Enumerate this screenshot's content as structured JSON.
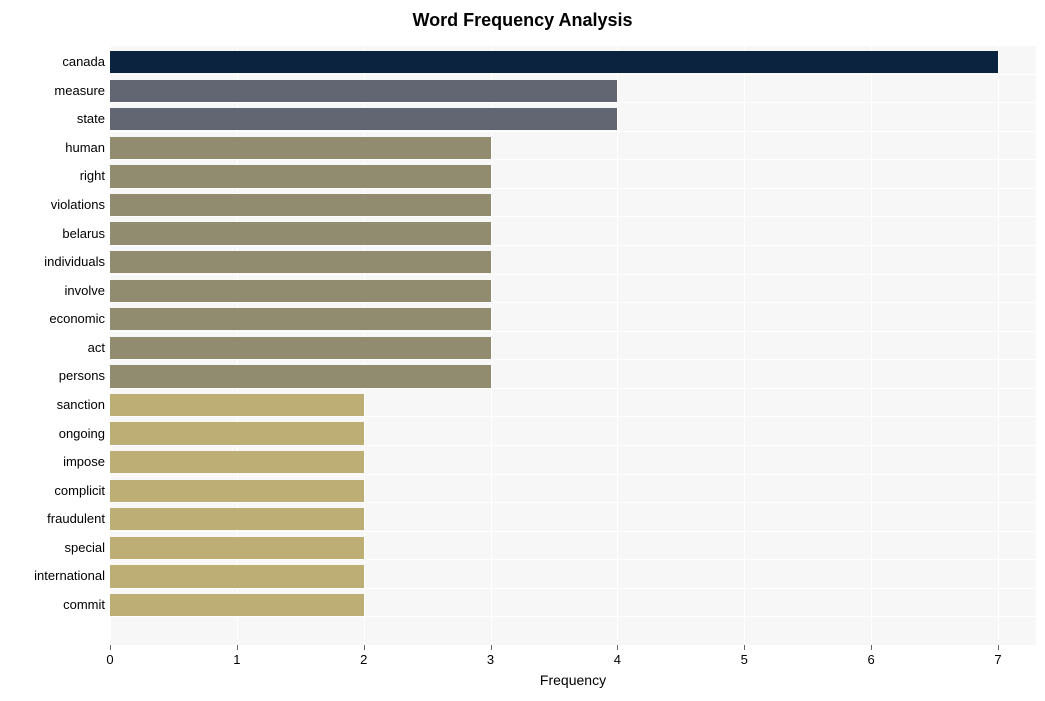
{
  "chart": {
    "type": "bar-horizontal",
    "title": "Word Frequency Analysis",
    "title_fontsize": 18,
    "title_fontweight": "bold",
    "xlabel": "Frequency",
    "xlabel_fontsize": 14,
    "background_color": "#ffffff",
    "plot_background_color": "#f7f7f7",
    "grid_color": "#ffffff",
    "axis_tick_color": "#666666",
    "text_color": "#000000",
    "xlim": [
      0,
      7.3
    ],
    "xtick_step": 1,
    "xticks": [
      0,
      1,
      2,
      3,
      4,
      5,
      6,
      7
    ],
    "bar_height_ratio": 0.78,
    "ylabel_fontsize": 13,
    "xtick_fontsize": 13,
    "words": [
      "canada",
      "measure",
      "state",
      "human",
      "right",
      "violations",
      "belarus",
      "individuals",
      "involve",
      "economic",
      "act",
      "persons",
      "sanction",
      "ongoing",
      "impose",
      "complicit",
      "fraudulent",
      "special",
      "international",
      "commit"
    ],
    "values": [
      7,
      4,
      4,
      3,
      3,
      3,
      3,
      3,
      3,
      3,
      3,
      3,
      2,
      2,
      2,
      2,
      2,
      2,
      2,
      2
    ],
    "bar_colors": [
      "#0c2340",
      "#626572",
      "#626572",
      "#918c6f",
      "#918c6f",
      "#918c6f",
      "#918c6f",
      "#918c6f",
      "#918c6f",
      "#918c6f",
      "#918c6f",
      "#918c6f",
      "#bdae76",
      "#bdae76",
      "#bdae76",
      "#bdae76",
      "#bdae76",
      "#bdae76",
      "#bdae76",
      "#bdae76"
    ]
  }
}
